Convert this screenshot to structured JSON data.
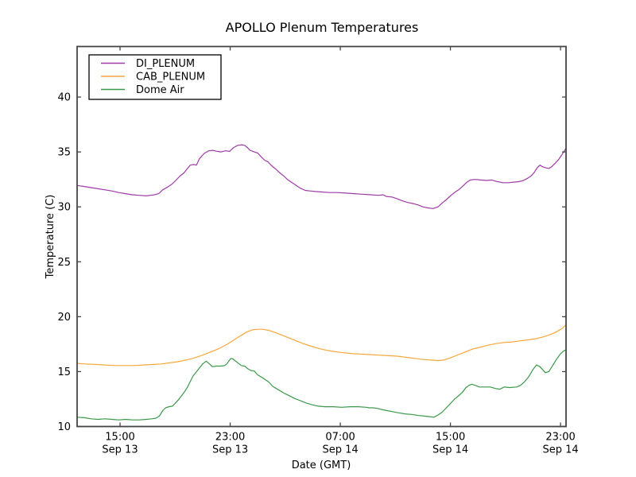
{
  "colors": {
    "background": "#ffffff",
    "spine": "#454545",
    "tick": "#454545",
    "text": "#000000",
    "legend_border": "#000000",
    "di_plenum": "#9e3ba6",
    "cab_plenum": "#f7a73a",
    "dome_air": "#3a9948"
  },
  "chart_data": {
    "type": "line",
    "title": "APOLLO Plenum Temperatures",
    "xlabel": "Date (GMT)",
    "ylabel": "Temperature (C)",
    "grid": false,
    "legend_position": "upper left",
    "x_encoding": "hours since Sep 13 00:00 GMT",
    "xlim": [
      11.88,
      47.4
    ],
    "ylim": [
      10,
      44.6
    ],
    "y_ticks": [
      10,
      15,
      20,
      25,
      30,
      35,
      40
    ],
    "x_ticks": [
      {
        "value": 15,
        "time": "15:00",
        "date": "Sep 13"
      },
      {
        "value": 23,
        "time": "23:00",
        "date": "Sep 13"
      },
      {
        "value": 31,
        "time": "07:00",
        "date": "Sep 14"
      },
      {
        "value": 39,
        "time": "15:00",
        "date": "Sep 14"
      },
      {
        "value": 47,
        "time": "23:00",
        "date": "Sep 14"
      }
    ],
    "series": [
      {
        "name": "DI_PLENUM",
        "color_key": "di_plenum",
        "points": [
          [
            11.88,
            31.95
          ],
          [
            12.4,
            31.85
          ],
          [
            12.9,
            31.75
          ],
          [
            13.4,
            31.65
          ],
          [
            13.9,
            31.55
          ],
          [
            14.4,
            31.45
          ],
          [
            14.9,
            31.3
          ],
          [
            15.4,
            31.2
          ],
          [
            15.9,
            31.1
          ],
          [
            16.4,
            31.05
          ],
          [
            16.9,
            31.0
          ],
          [
            17.2,
            31.05
          ],
          [
            17.5,
            31.1
          ],
          [
            17.8,
            31.2
          ],
          [
            18.1,
            31.55
          ],
          [
            18.45,
            31.8
          ],
          [
            18.75,
            32.05
          ],
          [
            19.05,
            32.4
          ],
          [
            19.35,
            32.8
          ],
          [
            19.65,
            33.1
          ],
          [
            19.9,
            33.5
          ],
          [
            20.1,
            33.8
          ],
          [
            20.35,
            33.85
          ],
          [
            20.55,
            33.8
          ],
          [
            20.75,
            34.35
          ],
          [
            20.95,
            34.65
          ],
          [
            21.15,
            34.9
          ],
          [
            21.45,
            35.1
          ],
          [
            21.75,
            35.15
          ],
          [
            22.05,
            35.05
          ],
          [
            22.35,
            35.0
          ],
          [
            22.65,
            35.1
          ],
          [
            22.95,
            35.05
          ],
          [
            23.25,
            35.4
          ],
          [
            23.55,
            35.6
          ],
          [
            23.85,
            35.65
          ],
          [
            24.05,
            35.6
          ],
          [
            24.25,
            35.4
          ],
          [
            24.45,
            35.15
          ],
          [
            24.75,
            35.0
          ],
          [
            25.0,
            34.9
          ],
          [
            25.25,
            34.55
          ],
          [
            25.5,
            34.25
          ],
          [
            25.75,
            34.1
          ],
          [
            26.0,
            33.75
          ],
          [
            26.3,
            33.45
          ],
          [
            26.6,
            33.1
          ],
          [
            26.9,
            32.8
          ],
          [
            27.2,
            32.45
          ],
          [
            27.5,
            32.2
          ],
          [
            27.8,
            31.95
          ],
          [
            28.1,
            31.7
          ],
          [
            28.45,
            31.5
          ],
          [
            28.8,
            31.45
          ],
          [
            29.2,
            31.4
          ],
          [
            29.7,
            31.35
          ],
          [
            30.2,
            31.3
          ],
          [
            30.8,
            31.3
          ],
          [
            31.4,
            31.25
          ],
          [
            32.0,
            31.2
          ],
          [
            32.6,
            31.15
          ],
          [
            33.2,
            31.1
          ],
          [
            33.8,
            31.05
          ],
          [
            34.1,
            31.1
          ],
          [
            34.35,
            30.95
          ],
          [
            34.75,
            30.9
          ],
          [
            35.1,
            30.75
          ],
          [
            35.5,
            30.55
          ],
          [
            35.9,
            30.4
          ],
          [
            36.3,
            30.3
          ],
          [
            36.7,
            30.15
          ],
          [
            37.0,
            30.0
          ],
          [
            37.4,
            29.9
          ],
          [
            37.75,
            29.85
          ],
          [
            38.1,
            30.0
          ],
          [
            38.45,
            30.4
          ],
          [
            38.75,
            30.7
          ],
          [
            39.05,
            31.05
          ],
          [
            39.35,
            31.35
          ],
          [
            39.65,
            31.6
          ],
          [
            39.95,
            31.95
          ],
          [
            40.2,
            32.25
          ],
          [
            40.45,
            32.45
          ],
          [
            40.8,
            32.5
          ],
          [
            41.2,
            32.45
          ],
          [
            41.6,
            32.4
          ],
          [
            42.0,
            32.45
          ],
          [
            42.4,
            32.3
          ],
          [
            42.8,
            32.2
          ],
          [
            43.2,
            32.2
          ],
          [
            43.6,
            32.25
          ],
          [
            44.0,
            32.3
          ],
          [
            44.3,
            32.4
          ],
          [
            44.6,
            32.6
          ],
          [
            44.85,
            32.8
          ],
          [
            45.1,
            33.15
          ],
          [
            45.3,
            33.55
          ],
          [
            45.5,
            33.8
          ],
          [
            45.7,
            33.65
          ],
          [
            45.95,
            33.55
          ],
          [
            46.15,
            33.5
          ],
          [
            46.35,
            33.65
          ],
          [
            46.6,
            33.95
          ],
          [
            46.85,
            34.3
          ],
          [
            47.1,
            34.75
          ],
          [
            47.3,
            35.15
          ],
          [
            47.4,
            35.35
          ]
        ]
      },
      {
        "name": "CAB_PLENUM",
        "color_key": "cab_plenum",
        "points": [
          [
            11.88,
            15.75
          ],
          [
            12.5,
            15.7
          ],
          [
            13.2,
            15.65
          ],
          [
            13.9,
            15.6
          ],
          [
            14.6,
            15.55
          ],
          [
            15.3,
            15.55
          ],
          [
            16.0,
            15.55
          ],
          [
            16.7,
            15.6
          ],
          [
            17.4,
            15.65
          ],
          [
            18.0,
            15.7
          ],
          [
            18.6,
            15.8
          ],
          [
            19.2,
            15.9
          ],
          [
            19.8,
            16.05
          ],
          [
            20.4,
            16.25
          ],
          [
            21.0,
            16.5
          ],
          [
            21.6,
            16.8
          ],
          [
            22.2,
            17.1
          ],
          [
            22.8,
            17.5
          ],
          [
            23.3,
            17.9
          ],
          [
            23.8,
            18.3
          ],
          [
            24.2,
            18.6
          ],
          [
            24.6,
            18.8
          ],
          [
            25.0,
            18.85
          ],
          [
            25.4,
            18.85
          ],
          [
            25.8,
            18.75
          ],
          [
            26.3,
            18.55
          ],
          [
            26.8,
            18.3
          ],
          [
            27.3,
            18.05
          ],
          [
            27.8,
            17.8
          ],
          [
            28.3,
            17.55
          ],
          [
            28.8,
            17.35
          ],
          [
            29.3,
            17.15
          ],
          [
            29.8,
            17.0
          ],
          [
            30.4,
            16.85
          ],
          [
            31.0,
            16.75
          ],
          [
            31.7,
            16.65
          ],
          [
            32.4,
            16.6
          ],
          [
            33.1,
            16.55
          ],
          [
            33.8,
            16.5
          ],
          [
            34.5,
            16.45
          ],
          [
            35.2,
            16.4
          ],
          [
            35.8,
            16.3
          ],
          [
            36.4,
            16.2
          ],
          [
            37.0,
            16.1
          ],
          [
            37.6,
            16.05
          ],
          [
            38.1,
            16.0
          ],
          [
            38.5,
            16.05
          ],
          [
            38.9,
            16.2
          ],
          [
            39.3,
            16.4
          ],
          [
            39.7,
            16.6
          ],
          [
            40.1,
            16.8
          ],
          [
            40.6,
            17.05
          ],
          [
            41.1,
            17.2
          ],
          [
            41.7,
            17.4
          ],
          [
            42.3,
            17.55
          ],
          [
            42.9,
            17.65
          ],
          [
            43.5,
            17.7
          ],
          [
            44.1,
            17.8
          ],
          [
            44.7,
            17.9
          ],
          [
            45.2,
            18.0
          ],
          [
            45.7,
            18.15
          ],
          [
            46.1,
            18.3
          ],
          [
            46.5,
            18.5
          ],
          [
            46.8,
            18.7
          ],
          [
            47.1,
            18.9
          ],
          [
            47.3,
            19.15
          ],
          [
            47.4,
            19.3
          ]
        ]
      },
      {
        "name": "Dome Air",
        "color_key": "dome_air",
        "points": [
          [
            11.88,
            10.85
          ],
          [
            12.4,
            10.8
          ],
          [
            12.9,
            10.7
          ],
          [
            13.4,
            10.65
          ],
          [
            13.9,
            10.7
          ],
          [
            14.4,
            10.65
          ],
          [
            14.9,
            10.6
          ],
          [
            15.4,
            10.65
          ],
          [
            15.9,
            10.6
          ],
          [
            16.4,
            10.6
          ],
          [
            16.9,
            10.65
          ],
          [
            17.3,
            10.7
          ],
          [
            17.6,
            10.75
          ],
          [
            17.85,
            10.95
          ],
          [
            18.1,
            11.45
          ],
          [
            18.3,
            11.7
          ],
          [
            18.55,
            11.8
          ],
          [
            18.8,
            11.85
          ],
          [
            19.0,
            12.1
          ],
          [
            19.25,
            12.45
          ],
          [
            19.5,
            12.85
          ],
          [
            19.7,
            13.2
          ],
          [
            19.9,
            13.6
          ],
          [
            20.1,
            14.1
          ],
          [
            20.3,
            14.6
          ],
          [
            20.5,
            14.9
          ],
          [
            20.75,
            15.3
          ],
          [
            21.0,
            15.7
          ],
          [
            21.25,
            15.95
          ],
          [
            21.5,
            15.7
          ],
          [
            21.7,
            15.45
          ],
          [
            22.0,
            15.5
          ],
          [
            22.3,
            15.5
          ],
          [
            22.6,
            15.55
          ],
          [
            22.75,
            15.7
          ],
          [
            22.9,
            15.95
          ],
          [
            23.05,
            16.2
          ],
          [
            23.2,
            16.15
          ],
          [
            23.5,
            15.85
          ],
          [
            23.8,
            15.55
          ],
          [
            24.05,
            15.5
          ],
          [
            24.3,
            15.25
          ],
          [
            24.5,
            15.1
          ],
          [
            24.75,
            15.05
          ],
          [
            25.0,
            14.7
          ],
          [
            25.4,
            14.4
          ],
          [
            25.8,
            14.05
          ],
          [
            26.1,
            13.65
          ],
          [
            26.5,
            13.35
          ],
          [
            26.9,
            13.05
          ],
          [
            27.3,
            12.8
          ],
          [
            27.7,
            12.55
          ],
          [
            28.1,
            12.35
          ],
          [
            28.5,
            12.15
          ],
          [
            28.9,
            12.0
          ],
          [
            29.4,
            11.85
          ],
          [
            29.9,
            11.8
          ],
          [
            30.5,
            11.8
          ],
          [
            31.1,
            11.75
          ],
          [
            31.7,
            11.8
          ],
          [
            32.3,
            11.8
          ],
          [
            32.9,
            11.75
          ],
          [
            33.1,
            11.7
          ],
          [
            33.4,
            11.7
          ],
          [
            33.7,
            11.65
          ],
          [
            34.0,
            11.55
          ],
          [
            34.4,
            11.45
          ],
          [
            34.8,
            11.35
          ],
          [
            35.2,
            11.25
          ],
          [
            35.7,
            11.15
          ],
          [
            36.2,
            11.1
          ],
          [
            36.7,
            11.0
          ],
          [
            37.1,
            10.95
          ],
          [
            37.5,
            10.9
          ],
          [
            37.8,
            10.85
          ],
          [
            38.1,
            11.05
          ],
          [
            38.4,
            11.3
          ],
          [
            38.7,
            11.7
          ],
          [
            39.0,
            12.1
          ],
          [
            39.3,
            12.5
          ],
          [
            39.6,
            12.8
          ],
          [
            39.9,
            13.15
          ],
          [
            40.1,
            13.5
          ],
          [
            40.35,
            13.75
          ],
          [
            40.55,
            13.85
          ],
          [
            40.8,
            13.75
          ],
          [
            41.1,
            13.6
          ],
          [
            41.5,
            13.6
          ],
          [
            41.9,
            13.6
          ],
          [
            42.3,
            13.45
          ],
          [
            42.6,
            13.4
          ],
          [
            42.9,
            13.6
          ],
          [
            43.3,
            13.55
          ],
          [
            43.8,
            13.6
          ],
          [
            44.1,
            13.75
          ],
          [
            44.4,
            14.1
          ],
          [
            44.7,
            14.55
          ],
          [
            45.0,
            15.2
          ],
          [
            45.25,
            15.6
          ],
          [
            45.5,
            15.45
          ],
          [
            45.9,
            14.9
          ],
          [
            46.15,
            15.0
          ],
          [
            46.45,
            15.6
          ],
          [
            46.7,
            16.1
          ],
          [
            46.95,
            16.55
          ],
          [
            47.15,
            16.8
          ],
          [
            47.3,
            16.95
          ],
          [
            47.4,
            16.9
          ]
        ]
      }
    ]
  }
}
